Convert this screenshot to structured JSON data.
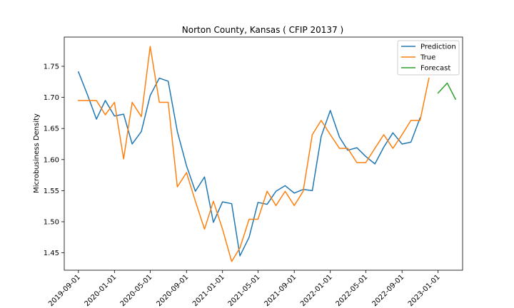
{
  "chart_data": {
    "type": "line",
    "title": "Norton County, Kansas ( CFIP 20137 )",
    "xlabel": "",
    "ylabel": "Microbusiness Density",
    "xlim": [
      "2019-07-15",
      "2023-03-25"
    ],
    "ylim": [
      1.422,
      1.797
    ],
    "x_ticks": [
      "2019-09-01",
      "2020-01-01",
      "2020-05-01",
      "2020-09-01",
      "2021-01-01",
      "2021-05-01",
      "2021-09-01",
      "2022-01-01",
      "2022-05-01",
      "2022-09-01",
      "2023-01-01"
    ],
    "y_ticks": [
      1.45,
      1.5,
      1.55,
      1.6,
      1.65,
      1.7,
      1.75
    ],
    "y_tick_labels": [
      "1.45",
      "1.50",
      "1.55",
      "1.60",
      "1.65",
      "1.70",
      "1.75"
    ],
    "grid": false,
    "legend_position": "top-right",
    "series": [
      {
        "name": "Prediction",
        "color": "#1f77b4",
        "x": [
          "2019-09-01",
          "2019-10-01",
          "2019-11-01",
          "2019-12-01",
          "2020-01-01",
          "2020-02-01",
          "2020-03-01",
          "2020-04-01",
          "2020-05-01",
          "2020-06-01",
          "2020-07-01",
          "2020-08-01",
          "2020-09-01",
          "2020-10-01",
          "2020-11-01",
          "2020-12-01",
          "2021-01-01",
          "2021-02-01",
          "2021-03-01",
          "2021-04-01",
          "2021-05-01",
          "2021-06-01",
          "2021-07-01",
          "2021-08-01",
          "2021-09-01",
          "2021-10-01",
          "2021-11-01",
          "2021-12-01",
          "2022-01-01",
          "2022-02-01",
          "2022-03-01",
          "2022-04-01",
          "2022-05-01",
          "2022-06-01",
          "2022-07-01",
          "2022-08-01",
          "2022-09-01",
          "2022-10-01",
          "2022-11-01"
        ],
        "values": [
          1.741,
          1.705,
          1.665,
          1.695,
          1.67,
          1.673,
          1.625,
          1.645,
          1.703,
          1.731,
          1.726,
          1.645,
          1.59,
          1.549,
          1.572,
          1.499,
          1.532,
          1.529,
          1.445,
          1.475,
          1.531,
          1.528,
          1.549,
          1.558,
          1.546,
          1.552,
          1.55,
          1.637,
          1.679,
          1.636,
          1.615,
          1.619,
          1.605,
          1.593,
          1.62,
          1.643,
          1.625,
          1.628,
          1.667
        ]
      },
      {
        "name": "True",
        "color": "#ff7f0e",
        "x": [
          "2019-09-01",
          "2019-10-01",
          "2019-11-01",
          "2019-12-01",
          "2020-01-01",
          "2020-02-01",
          "2020-03-01",
          "2020-04-01",
          "2020-05-01",
          "2020-06-01",
          "2020-07-01",
          "2020-08-01",
          "2020-09-01",
          "2020-10-01",
          "2020-11-01",
          "2020-12-01",
          "2021-01-01",
          "2021-02-01",
          "2021-03-01",
          "2021-04-01",
          "2021-05-01",
          "2021-06-01",
          "2021-07-01",
          "2021-08-01",
          "2021-09-01",
          "2021-10-01",
          "2021-11-01",
          "2021-12-01",
          "2022-01-01",
          "2022-02-01",
          "2022-03-01",
          "2022-04-01",
          "2022-05-01",
          "2022-06-01",
          "2022-07-01",
          "2022-08-01",
          "2022-09-01",
          "2022-10-01",
          "2022-11-01",
          "2022-12-01"
        ],
        "values": [
          1.695,
          1.695,
          1.695,
          1.672,
          1.692,
          1.601,
          1.692,
          1.669,
          1.782,
          1.692,
          1.692,
          1.556,
          1.579,
          1.533,
          1.488,
          1.533,
          1.488,
          1.436,
          1.458,
          1.504,
          1.504,
          1.549,
          1.526,
          1.549,
          1.526,
          1.549,
          1.64,
          1.663,
          1.64,
          1.618,
          1.618,
          1.595,
          1.595,
          1.618,
          1.64,
          1.618,
          1.64,
          1.663,
          1.663,
          1.731
        ]
      },
      {
        "name": "Forecast",
        "color": "#2ca02c",
        "x": [
          "2023-01-01",
          "2023-02-01",
          "2023-03-01"
        ],
        "values": [
          1.707,
          1.723,
          1.697
        ]
      }
    ]
  }
}
